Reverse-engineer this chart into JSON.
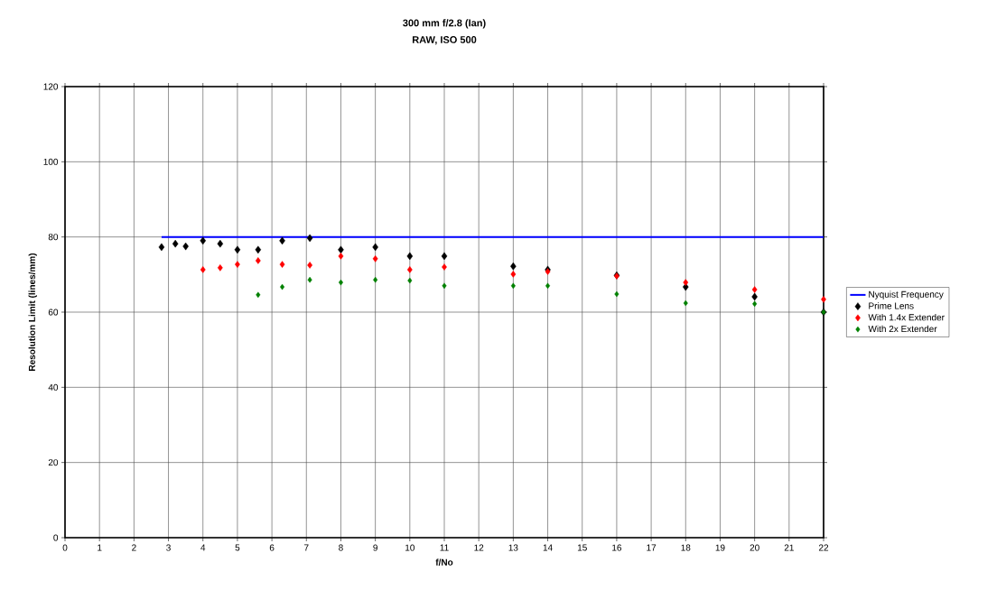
{
  "chart_data": {
    "type": "scatter",
    "title": "300 mm f/2.8 (Ian)",
    "subtitle": "RAW, ISO 500",
    "xlabel": "f/No",
    "ylabel": "Resolution Limit (lines/mm)",
    "xlim": [
      0,
      22
    ],
    "ylim": [
      0,
      120
    ],
    "xticks": [
      0,
      1,
      2,
      3,
      4,
      5,
      6,
      7,
      8,
      9,
      10,
      11,
      12,
      13,
      14,
      15,
      16,
      17,
      18,
      19,
      20,
      21,
      22
    ],
    "yticks": [
      0,
      20,
      40,
      60,
      80,
      100,
      120
    ],
    "grid": true,
    "legend": "right",
    "marker": "diamond",
    "series": [
      {
        "name": "Nyquist Frequency",
        "type": "line",
        "marker": "none",
        "color": "#0000ff",
        "x": [
          2.8,
          22
        ],
        "values": [
          80,
          80
        ]
      },
      {
        "name": "Prime Lens",
        "color": "#000000",
        "x": [
          2.8,
          3.2,
          3.5,
          4,
          4.5,
          5,
          5.6,
          6.3,
          7.1,
          8,
          9,
          10,
          11,
          13,
          14,
          16,
          18,
          20,
          22
        ],
        "values": [
          77.3,
          78.2,
          77.5,
          79,
          78.2,
          76.6,
          76.6,
          79,
          79.7,
          76.6,
          77.3,
          74.9,
          74.9,
          72.2,
          71.3,
          69.8,
          66.7,
          64.1,
          60
        ]
      },
      {
        "name": "With 1.4x Extender",
        "color": "#ff0000",
        "x": [
          4,
          4.5,
          5,
          5.6,
          6.3,
          7.1,
          8,
          9,
          10,
          11,
          13,
          14,
          16,
          18,
          20,
          22
        ],
        "values": [
          71.3,
          71.8,
          72.7,
          73.7,
          72.7,
          72.5,
          74.9,
          74.2,
          71.3,
          72,
          70.1,
          70.8,
          69.6,
          67.9,
          66,
          63.4
        ]
      },
      {
        "name": "With 2x Extender",
        "color": "#008000",
        "x": [
          5.6,
          6.3,
          7.1,
          8,
          9,
          10,
          11,
          13,
          14,
          16,
          18,
          20,
          22
        ],
        "values": [
          64.6,
          66.7,
          68.6,
          67.9,
          68.6,
          68.4,
          67,
          67,
          67,
          64.8,
          62.4,
          62.2,
          60
        ]
      }
    ]
  }
}
